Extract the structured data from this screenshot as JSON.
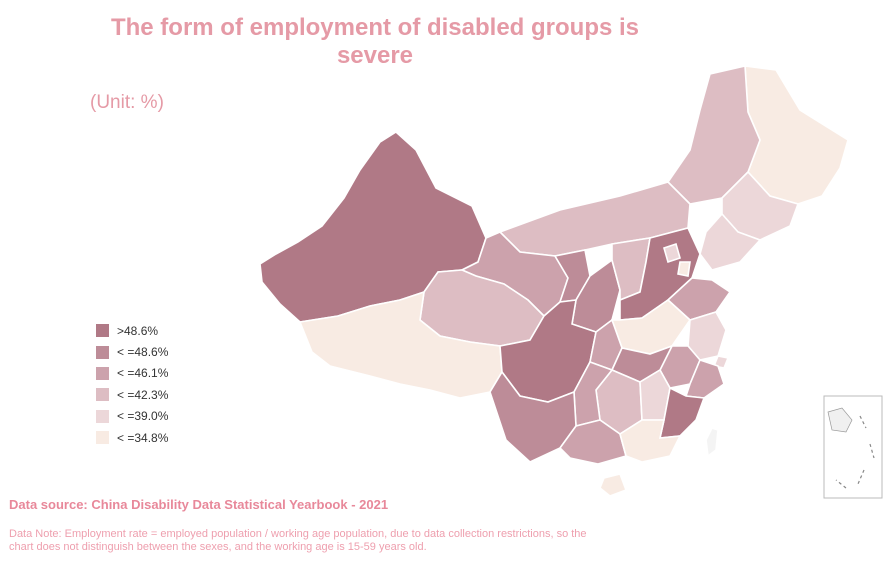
{
  "title": "The form of employment of disabled groups is severe",
  "unit": "(Unit: %)",
  "legend": [
    {
      "label": ">48.6%",
      "color": "#b07986"
    },
    {
      "label": "< =48.6%",
      "color": "#bd8c98"
    },
    {
      "label": "< =46.1%",
      "color": "#cca2ac"
    },
    {
      "label": "< =42.3%",
      "color": "#ddbdc3"
    },
    {
      "label": "< =39.0%",
      "color": "#ecd7d9"
    },
    {
      "label": "< =34.8%",
      "color": "#f8ebe3"
    }
  ],
  "source": "Data source: China Disability Data Statistical Yearbook - 2021",
  "note": "Data Note: Employment rate = employed population / working age population, due to data collection restrictions, so the chart does not distinguish between the sexes, and the working age is 15-59 years old."
}
